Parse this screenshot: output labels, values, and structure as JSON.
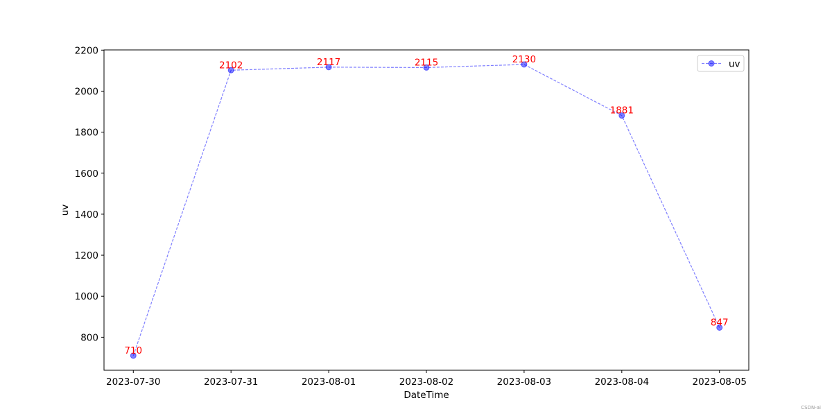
{
  "chart_data": {
    "type": "line",
    "x_label": "DateTime",
    "y_label": "uv",
    "x": [
      "2023-07-30",
      "2023-07-31",
      "2023-08-01",
      "2023-08-02",
      "2023-08-03",
      "2023-08-04",
      "2023-08-05"
    ],
    "series": [
      {
        "name": "uv",
        "color": "blue",
        "values": [
          710,
          2102,
          2117,
          2115,
          2130,
          1881,
          847
        ]
      }
    ],
    "label_color": "red",
    "ylim": [
      639,
      2201
    ],
    "yticks": [
      800,
      1000,
      1200,
      1400,
      1600,
      1800,
      2000,
      2200
    ],
    "grid": false,
    "legend": "upper right",
    "watermark": "CSDN-ai"
  }
}
